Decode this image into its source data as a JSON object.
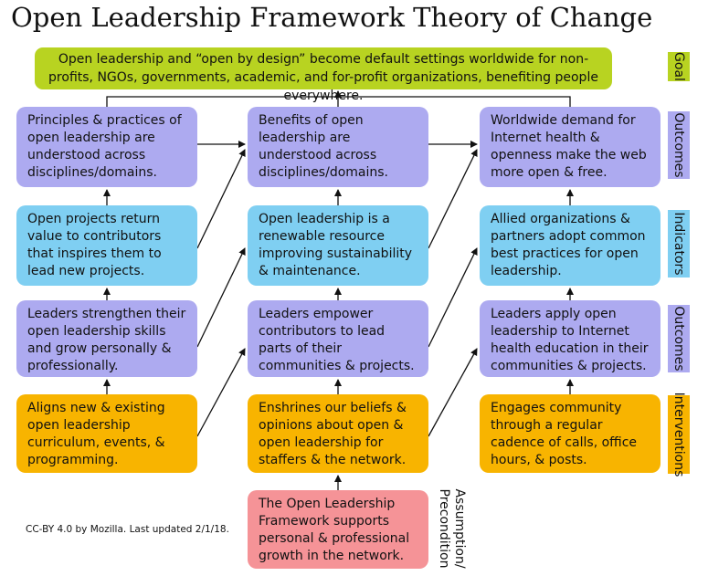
{
  "title": "Open Leadership Framework Theory of Change",
  "goal": "Open leadership and “open by design” become default settings worldwide for non-profits, NGOs, governments, academic, and for-profit organizations, benefiting people everywhere.",
  "row_labels": {
    "goal": "Goal",
    "outcomes_top": "Outcomes",
    "indicators": "Indicators",
    "outcomes_mid": "Outcomes",
    "interventions": "Interventions",
    "assumption": "Assumption/\nPrecondition"
  },
  "outcomes_top": [
    "Principles & practices of open leadership are understood across disciplines/domains.",
    "Benefits of open leadership are understood across disciplines/domains.",
    "Worldwide demand for Internet health & openness make the web more open & free."
  ],
  "indicators": [
    "Open projects return value to contributors that inspires them to lead new projects.",
    "Open leadership is a renewable resource improving sustainability & maintenance.",
    "Allied organizations & partners adopt common best practices for open leadership."
  ],
  "outcomes_mid": [
    "Leaders strengthen their open leadership skills and grow personally & professionally.",
    "Leaders empower contributors to lead parts of their communities & projects.",
    "Leaders apply open leadership to Internet health education in their communities & projects."
  ],
  "interventions": [
    "Aligns new & existing open leadership curriculum, events, & programming.",
    "Enshrines our beliefs & opinions about open & open leadership for staffers & the network.",
    "Engages community through a regular cadence of calls, office hours, & posts."
  ],
  "precondition": "The Open Leadership Framework supports personal & professional growth in the network.",
  "credit": "CC-BY 4.0 by Mozilla. Last updated 2/1/18.",
  "colors": {
    "goal": "#b8d321",
    "outcomes": "#adaaf0",
    "indicators": "#7fcff2",
    "interventions": "#f8b400",
    "precondition": "#f59397"
  }
}
